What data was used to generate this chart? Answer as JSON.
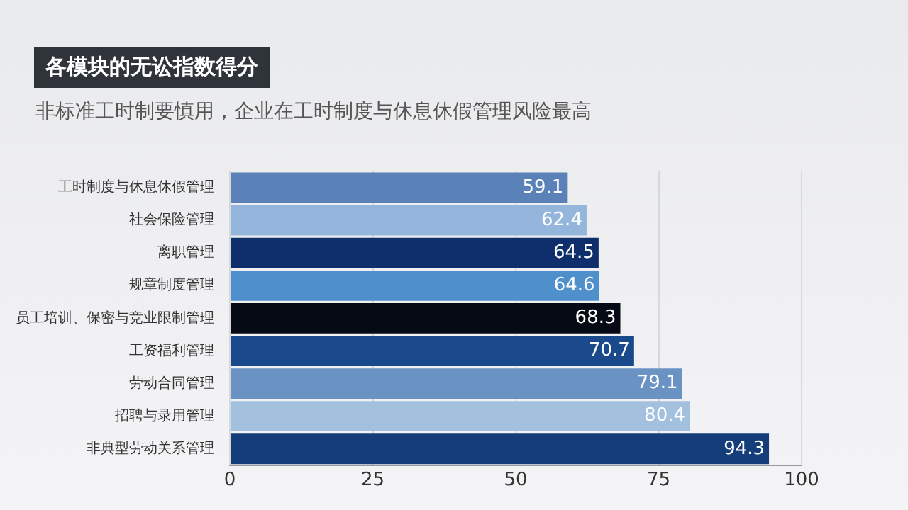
{
  "chart_data": {
    "type": "bar",
    "orientation": "horizontal",
    "title": "各模块的无讼指数得分",
    "subtitle": "非标准工时制要慎用，企业在工时制度与休息休假管理风险最高",
    "categories": [
      "工时制度与休息休假管理",
      "社会保险管理",
      "离职管理",
      "规章制度管理",
      "员工培训、保密与竞业限制管理",
      "工资福利管理",
      "劳动合同管理",
      "招聘与录用管理",
      "非典型劳动关系管理"
    ],
    "values": [
      59.1,
      62.4,
      64.5,
      64.6,
      68.3,
      70.7,
      79.1,
      80.4,
      94.3
    ],
    "colors": [
      "#5b82b8",
      "#94b6dc",
      "#0e2f6b",
      "#4f8fcc",
      "#050a14",
      "#1a4a8c",
      "#6a93c4",
      "#a3c1df",
      "#153d7a"
    ],
    "xlim": [
      0,
      100
    ],
    "xticks": [
      0,
      25,
      50,
      75,
      100
    ],
    "grid": "x",
    "data_labels": true
  }
}
